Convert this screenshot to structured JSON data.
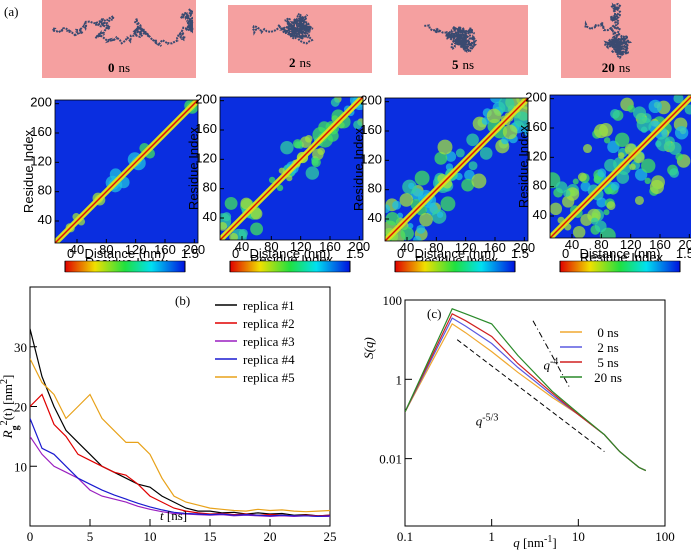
{
  "figure_label_a": "(a)",
  "snapshots": [
    {
      "time": "0",
      "unit": "ns"
    },
    {
      "time": "2",
      "unit": "ns"
    },
    {
      "time": "5",
      "unit": "ns"
    },
    {
      "time": "20",
      "unit": "ns"
    }
  ],
  "chart_data": [
    {
      "type": "heatmap",
      "xlabel": "Residue Index",
      "ylabel": "Residue Index",
      "xlim": [
        10,
        205
      ],
      "ylim": [
        10,
        205
      ],
      "xticks": [
        40,
        80,
        120,
        160,
        200
      ],
      "yticks": [
        40,
        80,
        120,
        160,
        200
      ],
      "colorbar": {
        "min": 0,
        "max": 1.5,
        "label": "Distance (nm)"
      }
    },
    {
      "type": "heatmap",
      "xlabel": "Residue Index",
      "ylabel": "Residue Index",
      "xlim": [
        10,
        205
      ],
      "ylim": [
        10,
        205
      ],
      "xticks": [
        40,
        80,
        120,
        160,
        200
      ],
      "yticks": [
        40,
        80,
        120,
        160,
        200
      ],
      "colorbar": {
        "min": 0,
        "max": 1.5,
        "label": "Distance (nm)"
      }
    },
    {
      "type": "heatmap",
      "xlabel": "Residue Index",
      "ylabel": "Residue Index",
      "xlim": [
        10,
        205
      ],
      "ylim": [
        10,
        205
      ],
      "xticks": [
        40,
        80,
        120,
        160,
        200
      ],
      "yticks": [
        40,
        80,
        120,
        160,
        200
      ],
      "colorbar": {
        "min": 0,
        "max": 1.5,
        "label": "Distance (nm)"
      }
    },
    {
      "type": "heatmap",
      "xlabel": "Residue Index",
      "ylabel": "Residue Index",
      "xlim": [
        10,
        205
      ],
      "ylim": [
        10,
        205
      ],
      "xticks": [
        40,
        80,
        120,
        160,
        200
      ],
      "yticks": [
        40,
        80,
        120,
        160,
        200
      ],
      "colorbar": {
        "min": 0,
        "max": 1.5,
        "label": "Distance (nm)"
      }
    },
    {
      "type": "line",
      "label": "(b)",
      "xlabel": [
        "t",
        " [ns]"
      ],
      "ylabel": [
        "R",
        "g",
        "2",
        "(t) [nm",
        "2",
        "]"
      ],
      "xlim": [
        0,
        25
      ],
      "ylim": [
        0,
        40
      ],
      "xticks": [
        0,
        5,
        10,
        15,
        20,
        25
      ],
      "yticks": [
        10,
        20,
        30
      ],
      "x": [
        0,
        1,
        2,
        3,
        4,
        5,
        6,
        7,
        8,
        9,
        10,
        11,
        12,
        13,
        14,
        15,
        16,
        17,
        18,
        19,
        20,
        21,
        22,
        23,
        24,
        25
      ],
      "series": [
        {
          "name": "replica #1",
          "color": "#000000",
          "values": [
            33,
            25,
            20,
            16,
            14,
            12,
            10,
            9,
            8,
            7,
            6.5,
            5,
            4,
            3,
            2.5,
            2.5,
            2.2,
            2.3,
            2.0,
            2.2,
            2.0,
            2.1,
            1.8,
            1.9,
            1.7,
            1.8
          ]
        },
        {
          "name": "replica #2",
          "color": "#e00000",
          "values": [
            20,
            22,
            17,
            15,
            12,
            11,
            10,
            9,
            8.5,
            7,
            5,
            4,
            3,
            2.5,
            2.2,
            2.0,
            2.1,
            1.9,
            2.0,
            1.8,
            1.9,
            1.8,
            1.7,
            1.8,
            1.7,
            1.8
          ]
        },
        {
          "name": "replica #3",
          "color": "#9a1fc0",
          "values": [
            15,
            12,
            10,
            9,
            8,
            6,
            5,
            4.5,
            4,
            3.3,
            2.8,
            2.4,
            2.1,
            2.0,
            1.9,
            1.8,
            1.9,
            1.7,
            1.8,
            1.7,
            1.6,
            1.7,
            1.6,
            1.7,
            1.6,
            1.6
          ]
        },
        {
          "name": "replica #4",
          "color": "#1a1ad0",
          "values": [
            18,
            13,
            12,
            10,
            8,
            7,
            6,
            5.2,
            4.5,
            3.8,
            3.2,
            2.7,
            2.3,
            2.1,
            2.0,
            1.9,
            2.0,
            1.8,
            1.9,
            1.8,
            1.7,
            1.8,
            1.7,
            1.7,
            1.6,
            1.7
          ]
        },
        {
          "name": "replica #5",
          "color": "#e8a21a",
          "values": [
            28,
            24,
            22,
            18,
            20,
            22,
            18,
            16,
            14,
            14,
            12,
            8,
            5,
            4,
            3.5,
            3,
            2.8,
            2.6,
            2.5,
            2.8,
            2.6,
            2.7,
            2.5,
            2.4,
            2.5,
            2.6
          ]
        }
      ]
    },
    {
      "type": "loglog",
      "label": "(c)",
      "xlabel": [
        "q",
        " [nm",
        "-1",
        "]"
      ],
      "ylabel": "S(q)",
      "xlim": [
        0.1,
        100
      ],
      "ylim": [
        0.0002,
        100
      ],
      "xticks": [
        0.1,
        1,
        10,
        100
      ],
      "yticks": [
        0.01,
        1,
        100
      ],
      "x": [
        0.1,
        0.35,
        0.5,
        1,
        2,
        5,
        10,
        20,
        30,
        50,
        60
      ],
      "series": [
        {
          "name": "0 ns",
          "color": "#f0a830",
          "values": [
            0.15,
            25,
            15,
            5,
            1.5,
            0.35,
            0.13,
            0.04,
            0.015,
            0.006,
            0.005
          ]
        },
        {
          "name": "2 ns",
          "color": "#5a5ae0",
          "values": [
            0.15,
            35,
            22,
            8,
            2,
            0.4,
            0.13,
            0.04,
            0.015,
            0.006,
            0.005
          ]
        },
        {
          "name": "5 ns",
          "color": "#d02020",
          "values": [
            0.15,
            45,
            30,
            12,
            2.5,
            0.45,
            0.13,
            0.04,
            0.015,
            0.006,
            0.005
          ]
        },
        {
          "name": "20 ns",
          "color": "#2a8a2a",
          "values": [
            0.15,
            60,
            45,
            25,
            4,
            0.5,
            0.14,
            0.04,
            0.015,
            0.006,
            0.005
          ]
        }
      ],
      "guides": [
        {
          "label": [
            "q",
            "-4"
          ],
          "x": [
            3,
            8
          ],
          "y": [
            30,
            0.6
          ]
        },
        {
          "label": [
            "q",
            "-5/3"
          ],
          "x": [
            0.4,
            20
          ],
          "y": [
            10,
            0.015
          ]
        }
      ]
    }
  ]
}
